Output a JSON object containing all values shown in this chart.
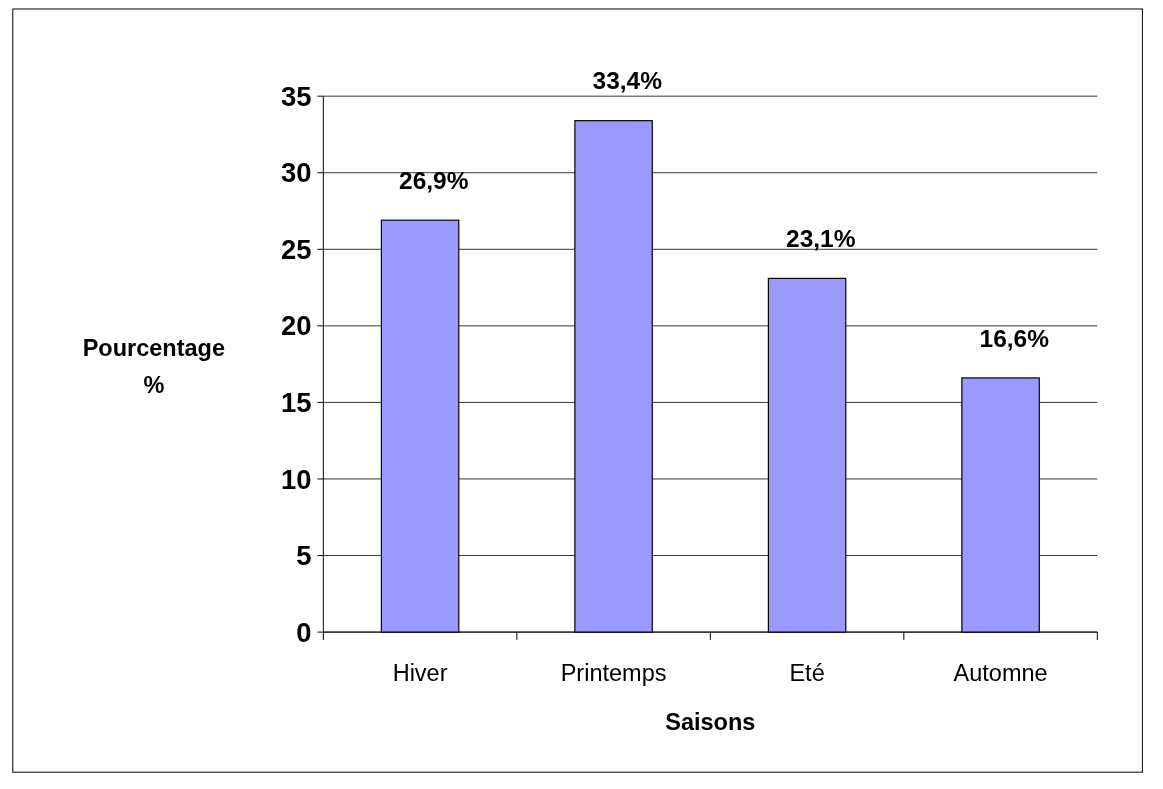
{
  "chart_data": {
    "type": "bar",
    "categories": [
      "Hiver",
      "Printemps",
      "Eté",
      "Automne"
    ],
    "values": [
      26.9,
      33.4,
      23.1,
      16.6
    ],
    "value_labels": [
      "26,9%",
      "33,4%",
      "23,1%",
      "16,6%"
    ],
    "color": "#9999ff",
    "xlabel": "Saisons",
    "ylabel": "Pourcentage %",
    "ylim": [
      0,
      35
    ],
    "yticks": [
      0,
      5,
      10,
      15,
      20,
      25,
      30,
      35
    ],
    "grid": "y"
  }
}
